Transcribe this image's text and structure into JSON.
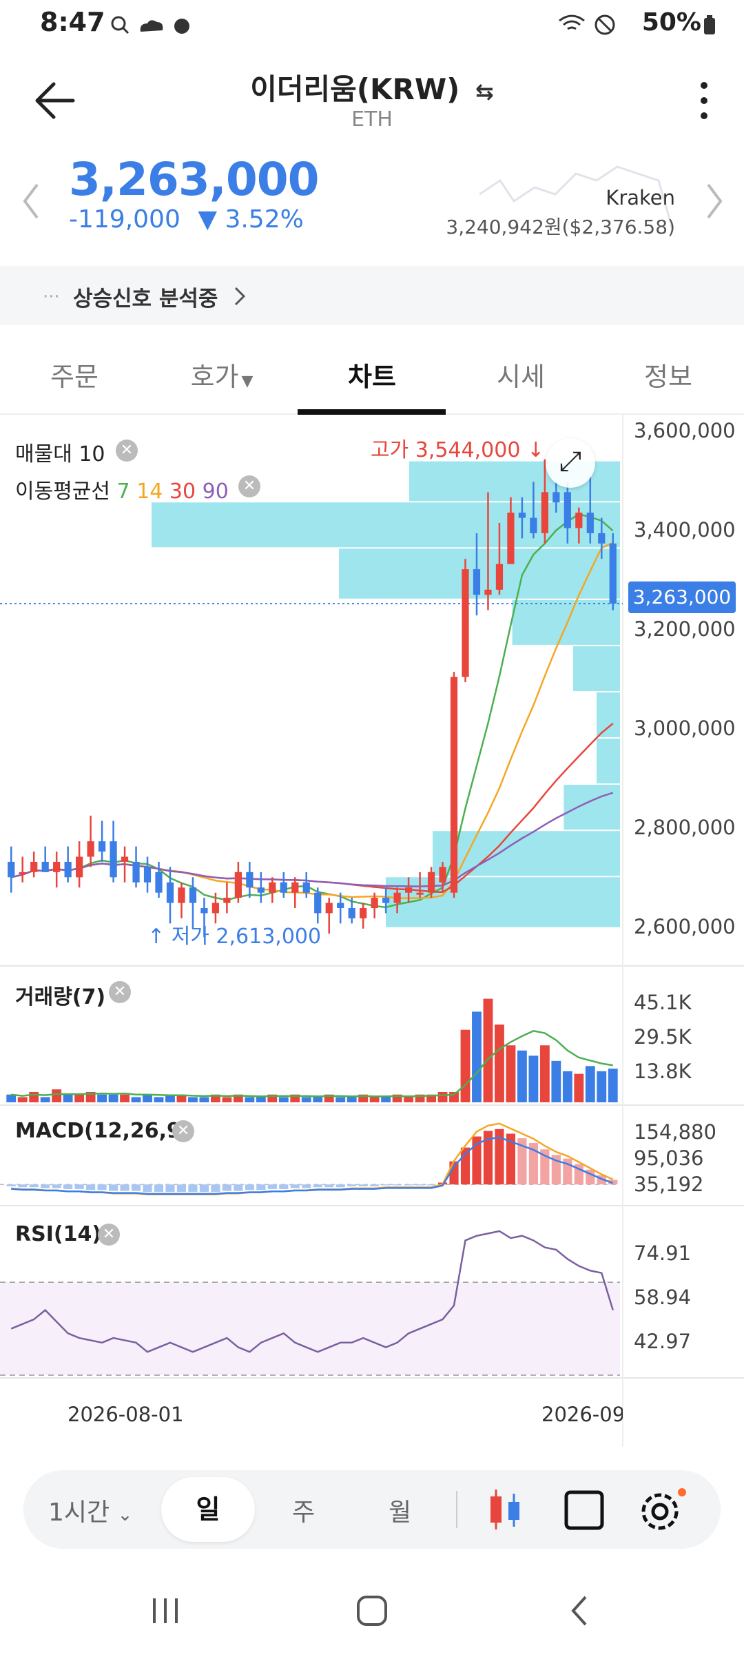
{
  "status_bar": {
    "time": "8:47",
    "battery": "50%"
  },
  "header": {
    "title": "이더리움(KRW)",
    "subtitle": "ETH"
  },
  "ticker": {
    "price": "3,263,000",
    "change_amount": "-119,000",
    "change_percent": "▼ 3.52%",
    "exchange_name": "Kraken",
    "exchange_price": "3,240,942원($2,376.58)",
    "color_down": "#3a7ee6",
    "color_up": "#e8453c"
  },
  "signal": {
    "label": "상승신호 분석중"
  },
  "tabs": [
    {
      "label": "주문"
    },
    {
      "label": "호가"
    },
    {
      "label": "차트",
      "active": true
    },
    {
      "label": "시세"
    },
    {
      "label": "정보"
    }
  ],
  "chart": {
    "volume_profile_label": "매물대 10",
    "ma_label": "이동평균선",
    "ma_periods": [
      "7",
      "14",
      "30",
      "90"
    ],
    "ma_colors": [
      "#4caf50",
      "#f5a623",
      "#e8453c",
      "#8e5fb5"
    ],
    "high_label": "고가 3,544,000",
    "low_label": "저가 2,613,000",
    "current_price_tag": "3,263,000",
    "y_ticks": [
      "3,600,000",
      "3,400,000",
      "3,200,000",
      "3,000,000",
      "2,800,000",
      "2,600,000"
    ],
    "volume_label": "거래량(7)",
    "volume_ticks": [
      "45.1K",
      "29.5K",
      "13.8K"
    ],
    "macd_label": "MACD(12,26,9)",
    "macd_ticks": [
      "154,880",
      "95,036",
      "35,192"
    ],
    "rsi_label": "RSI(14)",
    "rsi_ticks": [
      "74.91",
      "58.94",
      "42.97"
    ],
    "date_labels": [
      "2026-08-01",
      "2026-09"
    ]
  },
  "chart_data": {
    "type": "candlestick",
    "ylim": [
      2560000,
      3620000
    ],
    "candles": [
      {
        "o": 2760000,
        "h": 2790000,
        "l": 2700000,
        "c": 2730000
      },
      {
        "o": 2740000,
        "h": 2770000,
        "l": 2720000,
        "c": 2740000
      },
      {
        "o": 2740000,
        "h": 2780000,
        "l": 2730000,
        "c": 2760000
      },
      {
        "o": 2760000,
        "h": 2790000,
        "l": 2740000,
        "c": 2740000
      },
      {
        "o": 2740000,
        "h": 2780000,
        "l": 2710000,
        "c": 2760000
      },
      {
        "o": 2760000,
        "h": 2790000,
        "l": 2720000,
        "c": 2730000
      },
      {
        "o": 2730000,
        "h": 2800000,
        "l": 2710000,
        "c": 2770000
      },
      {
        "o": 2770000,
        "h": 2850000,
        "l": 2750000,
        "c": 2800000
      },
      {
        "o": 2800000,
        "h": 2840000,
        "l": 2760000,
        "c": 2780000
      },
      {
        "o": 2800000,
        "h": 2840000,
        "l": 2720000,
        "c": 2730000
      },
      {
        "o": 2760000,
        "h": 2790000,
        "l": 2720000,
        "c": 2770000
      },
      {
        "o": 2760000,
        "h": 2790000,
        "l": 2710000,
        "c": 2720000
      },
      {
        "o": 2750000,
        "h": 2770000,
        "l": 2700000,
        "c": 2720000
      },
      {
        "o": 2740000,
        "h": 2760000,
        "l": 2690000,
        "c": 2700000
      },
      {
        "o": 2720000,
        "h": 2750000,
        "l": 2640000,
        "c": 2680000
      },
      {
        "o": 2680000,
        "h": 2720000,
        "l": 2650000,
        "c": 2710000
      },
      {
        "o": 2710000,
        "h": 2730000,
        "l": 2630000,
        "c": 2680000
      },
      {
        "o": 2670000,
        "h": 2690000,
        "l": 2613000,
        "c": 2660000
      },
      {
        "o": 2660000,
        "h": 2700000,
        "l": 2640000,
        "c": 2680000
      },
      {
        "o": 2680000,
        "h": 2720000,
        "l": 2660000,
        "c": 2690000
      },
      {
        "o": 2690000,
        "h": 2760000,
        "l": 2680000,
        "c": 2740000
      },
      {
        "o": 2740000,
        "h": 2760000,
        "l": 2690000,
        "c": 2710000
      },
      {
        "o": 2710000,
        "h": 2740000,
        "l": 2680000,
        "c": 2700000
      },
      {
        "o": 2700000,
        "h": 2730000,
        "l": 2680000,
        "c": 2720000
      },
      {
        "o": 2720000,
        "h": 2740000,
        "l": 2690000,
        "c": 2700000
      },
      {
        "o": 2700000,
        "h": 2730000,
        "l": 2670000,
        "c": 2720000
      },
      {
        "o": 2720000,
        "h": 2740000,
        "l": 2690000,
        "c": 2700000
      },
      {
        "o": 2700000,
        "h": 2710000,
        "l": 2640000,
        "c": 2660000
      },
      {
        "o": 2660000,
        "h": 2690000,
        "l": 2620000,
        "c": 2680000
      },
      {
        "o": 2680000,
        "h": 2700000,
        "l": 2640000,
        "c": 2670000
      },
      {
        "o": 2670000,
        "h": 2690000,
        "l": 2640000,
        "c": 2650000
      },
      {
        "o": 2650000,
        "h": 2680000,
        "l": 2630000,
        "c": 2670000
      },
      {
        "o": 2670000,
        "h": 2700000,
        "l": 2650000,
        "c": 2690000
      },
      {
        "o": 2690000,
        "h": 2710000,
        "l": 2660000,
        "c": 2680000
      },
      {
        "o": 2680000,
        "h": 2710000,
        "l": 2660000,
        "c": 2700000
      },
      {
        "o": 2700000,
        "h": 2730000,
        "l": 2680000,
        "c": 2710000
      },
      {
        "o": 2700000,
        "h": 2740000,
        "l": 2690000,
        "c": 2700000
      },
      {
        "o": 2700000,
        "h": 2750000,
        "l": 2690000,
        "c": 2740000
      },
      {
        "o": 2720000,
        "h": 2760000,
        "l": 2700000,
        "c": 2750000
      },
      {
        "o": 2700000,
        "h": 3130000,
        "l": 2690000,
        "c": 3120000
      },
      {
        "o": 3120000,
        "h": 3350000,
        "l": 3110000,
        "c": 3330000
      },
      {
        "o": 3330000,
        "h": 3400000,
        "l": 3240000,
        "c": 3280000
      },
      {
        "o": 3280000,
        "h": 3480000,
        "l": 3250000,
        "c": 3290000
      },
      {
        "o": 3290000,
        "h": 3420000,
        "l": 3280000,
        "c": 3340000
      },
      {
        "o": 3340000,
        "h": 3470000,
        "l": 3340000,
        "c": 3440000
      },
      {
        "o": 3440000,
        "h": 3470000,
        "l": 3390000,
        "c": 3430000
      },
      {
        "o": 3430000,
        "h": 3500000,
        "l": 3390000,
        "c": 3400000
      },
      {
        "o": 3400000,
        "h": 3544000,
        "l": 3380000,
        "c": 3480000
      },
      {
        "o": 3480000,
        "h": 3500000,
        "l": 3440000,
        "c": 3460000
      },
      {
        "o": 3480000,
        "h": 3500000,
        "l": 3380000,
        "c": 3410000
      },
      {
        "o": 3410000,
        "h": 3450000,
        "l": 3380000,
        "c": 3440000
      },
      {
        "o": 3440000,
        "h": 3510000,
        "l": 3380000,
        "c": 3400000
      },
      {
        "o": 3400000,
        "h": 3430000,
        "l": 3350000,
        "c": 3380000
      },
      {
        "o": 3380000,
        "h": 3400000,
        "l": 3250000,
        "c": 3263000
      }
    ],
    "volume": [
      3,
      2,
      4,
      2,
      5,
      3,
      3,
      4,
      3,
      3,
      3,
      2,
      3,
      2,
      3,
      3,
      2,
      2,
      3,
      2,
      3,
      2,
      2,
      3,
      2,
      3,
      2,
      2,
      3,
      2,
      2,
      3,
      2,
      2,
      3,
      2,
      3,
      3,
      4,
      4,
      28,
      35,
      40,
      30,
      22,
      20,
      18,
      22,
      16,
      12,
      11,
      14,
      12,
      13
    ],
    "volume_max": 50,
    "macd_histogram": [
      -2,
      -3,
      -3,
      -4,
      -4,
      -5,
      -5,
      -6,
      -6,
      -7,
      -7,
      -7,
      -8,
      -8,
      -8,
      -8,
      -8,
      -8,
      -8,
      -7,
      -7,
      -6,
      -6,
      -5,
      -5,
      -4,
      -4,
      -3,
      -3,
      -3,
      -2,
      -2,
      -2,
      -1,
      -1,
      -1,
      -1,
      -1,
      2,
      25,
      40,
      52,
      58,
      60,
      55,
      50,
      45,
      38,
      32,
      28,
      22,
      16,
      10,
      5
    ],
    "macd_min": -20,
    "macd_max": 80,
    "rsi": [
      50,
      52,
      54,
      58,
      53,
      48,
      46,
      45,
      44,
      46,
      45,
      44,
      40,
      42,
      44,
      42,
      40,
      42,
      44,
      46,
      42,
      40,
      44,
      46,
      48,
      44,
      42,
      40,
      42,
      44,
      44,
      46,
      44,
      42,
      44,
      48,
      50,
      52,
      54,
      60,
      88,
      90,
      91,
      92,
      89,
      90,
      88,
      85,
      84,
      80,
      77,
      75,
      74,
      58
    ],
    "rsi_min": 30,
    "rsi_max": 100,
    "rsi_bands": [
      70,
      30
    ],
    "volume_profile_bars": [
      {
        "lo": 3460000,
        "hi": 3540000,
        "w": 0.45
      },
      {
        "lo": 3370000,
        "hi": 3460000,
        "w": 1.0
      },
      {
        "lo": 3270000,
        "hi": 3370000,
        "w": 0.6
      },
      {
        "lo": 3180000,
        "hi": 3270000,
        "w": 0.23
      },
      {
        "lo": 3090000,
        "hi": 3180000,
        "w": 0.1
      },
      {
        "lo": 3000000,
        "hi": 3090000,
        "w": 0.05
      },
      {
        "lo": 2910000,
        "hi": 3000000,
        "w": 0.05
      },
      {
        "lo": 2820000,
        "hi": 2910000,
        "w": 0.12
      },
      {
        "lo": 2730000,
        "hi": 2820000,
        "w": 0.4
      },
      {
        "lo": 2630000,
        "hi": 2730000,
        "w": 0.5
      }
    ]
  }
}
